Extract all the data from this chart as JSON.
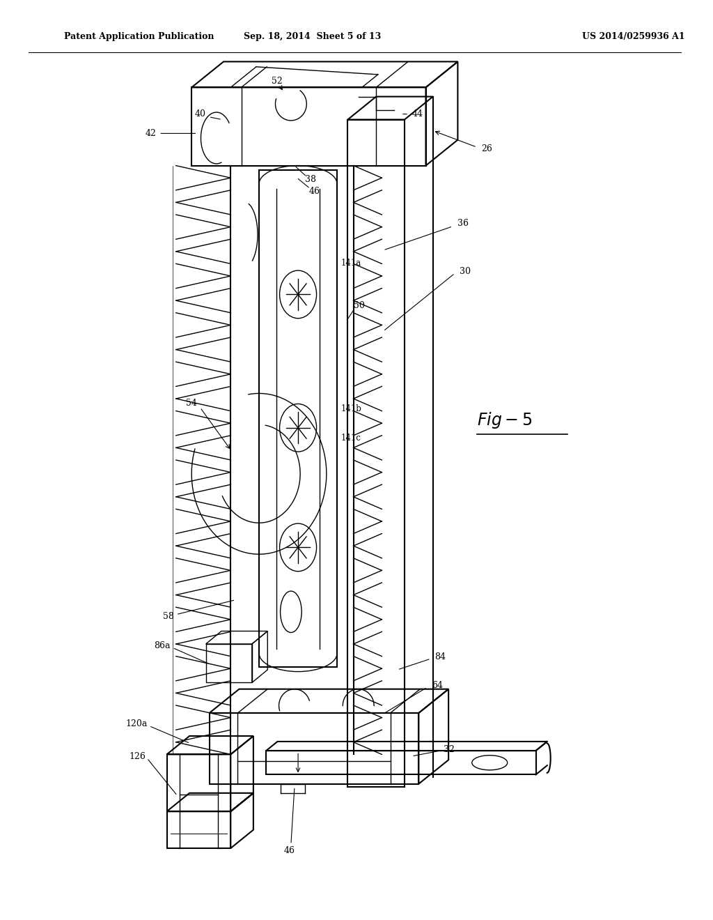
{
  "title_left": "Patent Application Publication",
  "title_center": "Sep. 18, 2014  Sheet 5 of 13",
  "title_right": "US 2014/0259936 A1",
  "fig_label": "Fig-5",
  "bg_color": "#ffffff",
  "line_color": "#000000"
}
